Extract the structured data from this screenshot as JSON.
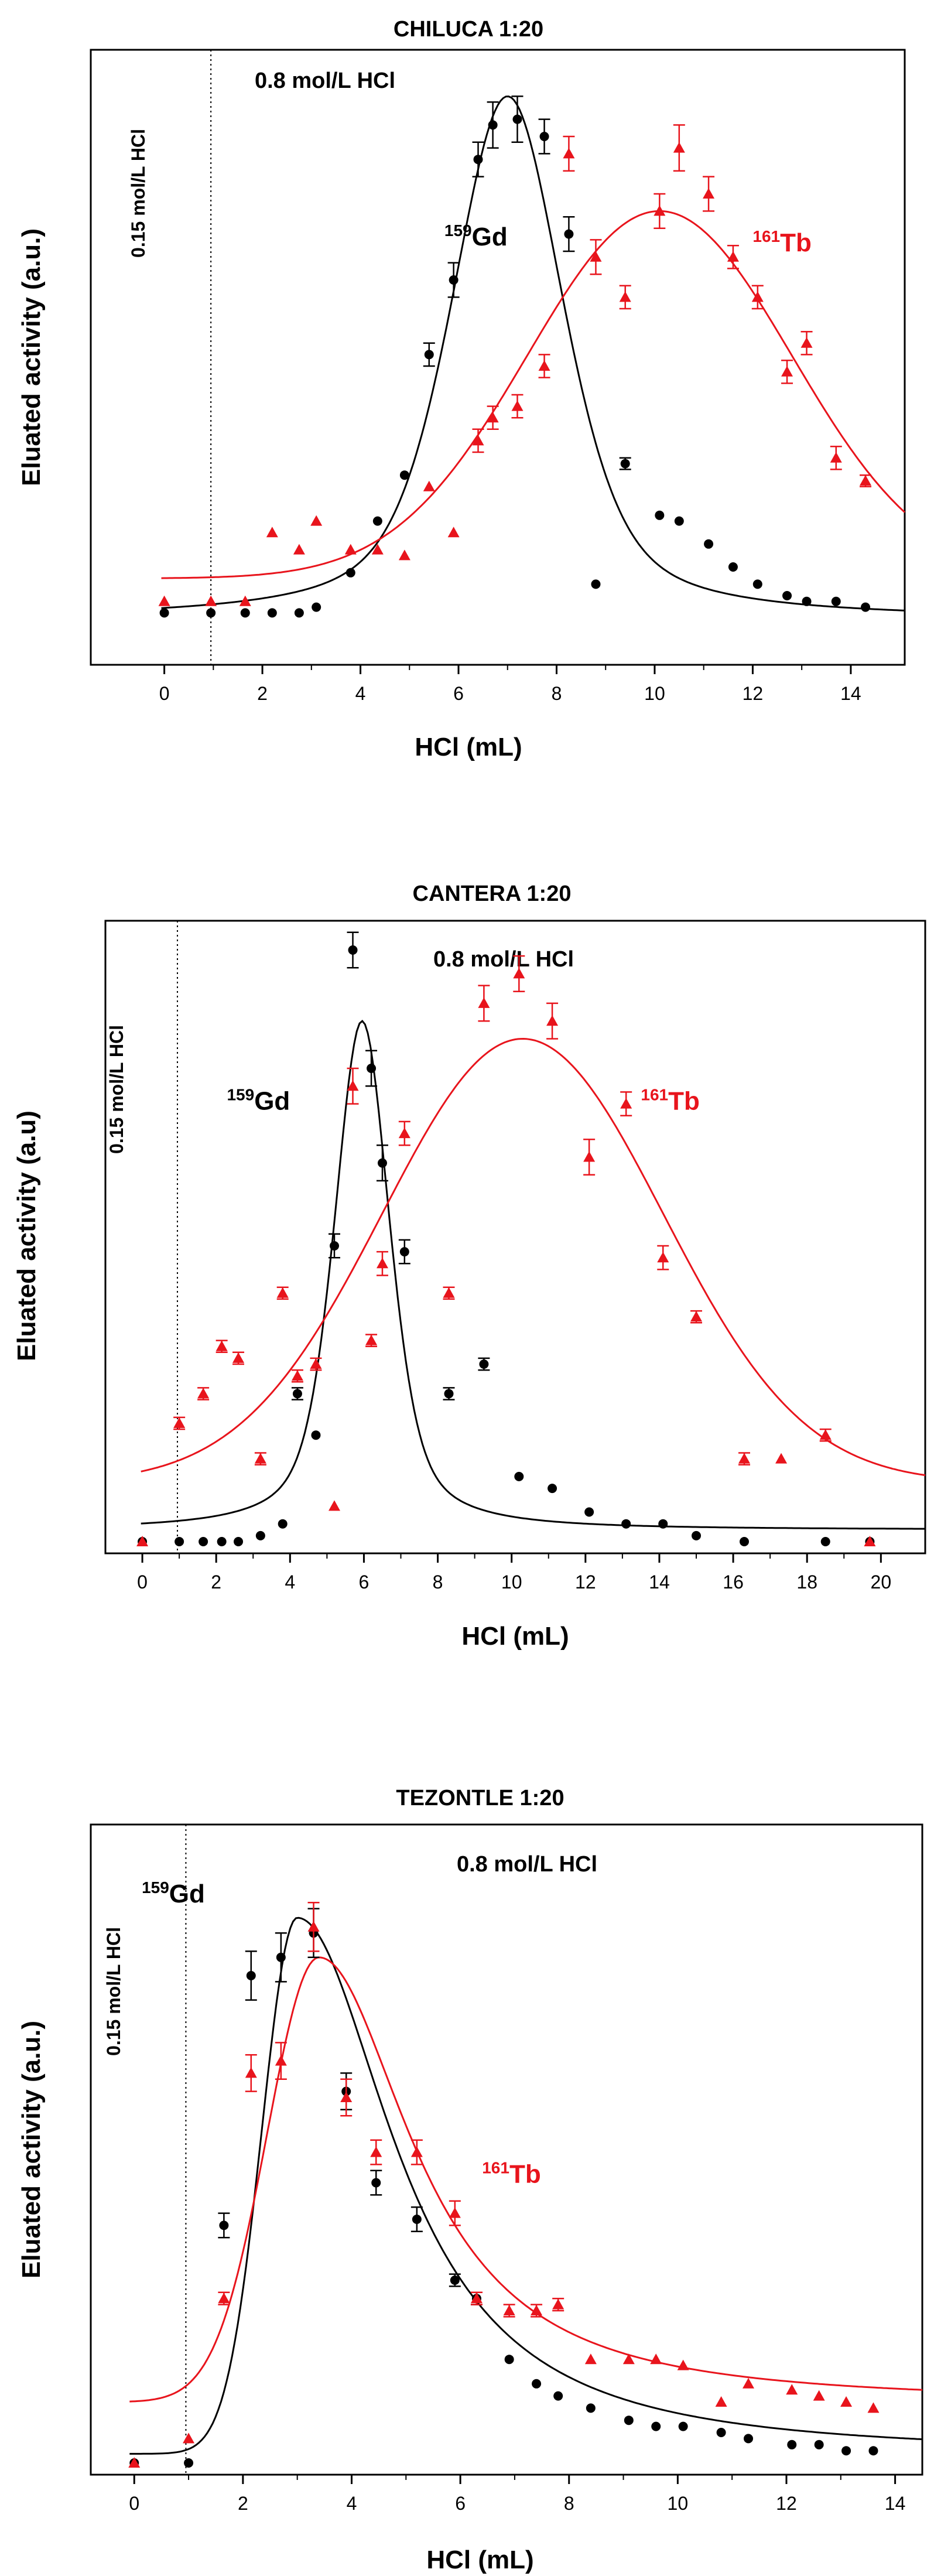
{
  "colors": {
    "gd": "#000000",
    "tb": "#e8141c"
  },
  "chart_data": [
    {
      "type": "scatter",
      "title": "CHILUCA 1:20",
      "xlabel": "HCl  (mL)",
      "ylabel": "Eluated activity (a.u.)",
      "xlim": [
        -1.5,
        15.1
      ],
      "ylim": [
        0,
        100
      ],
      "xticks": [
        0,
        2,
        4,
        6,
        8,
        10,
        12,
        14
      ],
      "xtick_labels": [
        "0",
        "2",
        "4",
        "6",
        "8",
        "10",
        "12",
        "14"
      ],
      "vline_x": 0.95,
      "upper_annotation": "0.8 mol/L HCl",
      "vertical_annotation": "0.15 mol/L HCl",
      "gd_label": {
        "sup": "159",
        "text": "Gd",
        "x": 7.0,
        "y": 71
      },
      "tb_label": {
        "sup": "161",
        "text": "Tb",
        "x": 12.0,
        "y": 70
      },
      "series": [
        {
          "name": "159Gd",
          "color": "#000000",
          "marker": "circle",
          "x": [
            0,
            0.95,
            1.65,
            2.2,
            2.75,
            3.1,
            3.8,
            4.35,
            4.9,
            5.4,
            5.9,
            6.4,
            6.7,
            7.2,
            7.75,
            8.25,
            8.8,
            9.4,
            10.1,
            10.5,
            11.1,
            11.6,
            12.1,
            12.7,
            13.1,
            13.7,
            14.3
          ],
          "y": [
            7,
            7,
            7,
            7,
            7,
            8,
            14,
            23,
            31,
            52,
            65,
            86,
            92,
            93,
            90,
            73,
            12,
            33,
            24,
            23,
            19,
            15,
            12,
            10,
            9,
            9,
            8
          ],
          "err": [
            0,
            0,
            0,
            0,
            0,
            0,
            0,
            0,
            0,
            2,
            3,
            3,
            4,
            4,
            3,
            3,
            0,
            1,
            0,
            0,
            0,
            0,
            0,
            0,
            0,
            0,
            0
          ]
        },
        {
          "name": "161Tb",
          "color": "#e8141c",
          "marker": "triangle",
          "x": [
            0,
            0.95,
            1.65,
            2.2,
            2.75,
            3.1,
            3.8,
            4.35,
            4.9,
            5.4,
            5.9,
            6.4,
            6.7,
            7.2,
            7.75,
            8.25,
            8.8,
            9.4,
            10.1,
            10.5,
            11.1,
            11.6,
            12.1,
            12.7,
            13.1,
            13.7,
            14.3
          ],
          "y": [
            9,
            9,
            9,
            21,
            18,
            23,
            18,
            18,
            17,
            29,
            21,
            37,
            41,
            43,
            50,
            87,
            69,
            62,
            77,
            88,
            80,
            69,
            62,
            49,
            54,
            34,
            30
          ],
          "err": [
            0,
            0,
            0,
            0,
            0,
            0,
            0,
            0,
            0,
            0,
            0,
            2,
            2,
            2,
            2,
            3,
            3,
            2,
            3,
            4,
            3,
            2,
            2,
            2,
            2,
            2,
            1
          ]
        }
      ],
      "fits": [
        {
          "name": "159Gd fit",
          "color": "#000000",
          "model": "lorentz_gauss",
          "x0": 7.0,
          "amp": 91,
          "base": 6,
          "w": 1.45
        },
        {
          "name": "161Tb fit",
          "color": "#e8141c",
          "model": "gauss",
          "x0": 10.1,
          "amp": 64,
          "base": 13,
          "w": 2.7
        }
      ]
    },
    {
      "type": "scatter",
      "title": "CANTERA 1:20",
      "xlabel": "HCl (mL)",
      "ylabel": "Eluated activity (a.u)",
      "xlim": [
        -1,
        21.2
      ],
      "ylim": [
        0,
        100
      ],
      "xticks": [
        0,
        2,
        4,
        6,
        8,
        10,
        12,
        14,
        16,
        18,
        20
      ],
      "xtick_labels": [
        "0",
        "2",
        "4",
        "6",
        "8",
        "10",
        "12",
        "14",
        "16",
        "18",
        "20"
      ],
      "vline_x": 0.95,
      "upper_annotation": "0.8 mol/L HCl",
      "vertical_annotation": "0.15 mol/L HCl",
      "gd_label": {
        "sup": "159",
        "text": "Gd",
        "x": 4.0,
        "y": 73
      },
      "tb_label": {
        "sup": "161",
        "text": "Tb",
        "x": 13.5,
        "y": 73
      },
      "series": [
        {
          "name": "159Gd",
          "color": "#000000",
          "marker": "circle",
          "x": [
            0,
            1.0,
            1.65,
            2.15,
            2.6,
            3.2,
            3.8,
            4.2,
            4.7,
            5.2,
            5.7,
            6.2,
            6.5,
            7.1,
            8.3,
            9.25,
            10.2,
            11.1,
            12.1,
            13.1,
            14.1,
            15.0,
            16.3,
            18.5,
            19.7
          ],
          "y": [
            0,
            0,
            0,
            0,
            0,
            1,
            3,
            25,
            18,
            50,
            100,
            80,
            64,
            49,
            25,
            30,
            11,
            9,
            5,
            3,
            3,
            1,
            0,
            0,
            0
          ],
          "err": [
            0,
            0,
            0,
            0,
            0,
            0,
            0,
            1,
            0,
            2,
            3,
            3,
            3,
            2,
            1,
            1,
            0,
            0,
            0,
            0,
            0,
            0,
            0,
            0,
            0
          ]
        },
        {
          "name": "161Tb",
          "color": "#e8141c",
          "marker": "triangle",
          "x": [
            0,
            1.0,
            1.65,
            2.15,
            2.6,
            3.2,
            3.8,
            4.2,
            4.7,
            5.2,
            5.7,
            6.2,
            6.5,
            7.1,
            8.3,
            9.25,
            10.2,
            11.1,
            12.1,
            13.1,
            14.1,
            15.0,
            16.3,
            17.3,
            18.5,
            19.7
          ],
          "y": [
            0,
            20,
            25,
            33,
            31,
            14,
            42,
            28,
            30,
            6,
            77,
            34,
            47,
            69,
            42,
            91,
            96,
            88,
            65,
            74,
            48,
            38,
            14,
            14,
            18,
            0
          ],
          "err": [
            0,
            1,
            1,
            1,
            1,
            1,
            1,
            1,
            1,
            0,
            3,
            1,
            2,
            2,
            1,
            3,
            3,
            3,
            3,
            2,
            2,
            1,
            1,
            0,
            1,
            0
          ]
        }
      ],
      "fits": [
        {
          "name": "159Gd fit",
          "color": "#000000",
          "model": "lorentz_gauss",
          "x0": 5.95,
          "amp": 86,
          "base": 2,
          "w": 0.95
        },
        {
          "name": "161Tb fit",
          "color": "#e8141c",
          "model": "gauss",
          "x0": 10.3,
          "amp": 75,
          "base": 10,
          "w": 3.8
        }
      ]
    },
    {
      "type": "scatter",
      "title": "TEZONTLE 1:20",
      "xlabel": "HCl (mL)",
      "ylabel": "Eluated activity (a.u.)",
      "xlim": [
        -0.8,
        14.5
      ],
      "ylim": [
        0,
        100
      ],
      "xticks": [
        0,
        2,
        4,
        6,
        8,
        10,
        12,
        14
      ],
      "xtick_labels": [
        "0",
        "2",
        "4",
        "6",
        "8",
        "10",
        "12",
        "14"
      ],
      "vline_x": 0.95,
      "upper_annotation": "0.8 mol/L HCl",
      "vertical_annotation": "0.15 mol/L HCl",
      "gd_label": {
        "sup": "159",
        "text": "Gd",
        "x": 1.3,
        "y": 92
      },
      "tb_label": {
        "sup": "161",
        "text": "Tb",
        "x": 6.4,
        "y": 46
      },
      "series": [
        {
          "name": "159Gd",
          "color": "#000000",
          "marker": "circle",
          "x": [
            0,
            1.0,
            1.65,
            2.15,
            2.7,
            3.3,
            3.9,
            4.45,
            5.2,
            5.9,
            6.3,
            6.9,
            7.4,
            7.8,
            8.4,
            9.1,
            9.6,
            10.1,
            10.8,
            11.3,
            12.1,
            12.6,
            13.1,
            13.6
          ],
          "y": [
            0,
            0,
            39,
            80,
            83,
            87,
            61,
            46,
            40,
            30,
            27,
            17,
            13,
            11,
            9,
            7,
            6,
            6,
            5,
            4,
            3,
            3,
            2,
            2
          ],
          "err": [
            0,
            0,
            2,
            4,
            4,
            4,
            3,
            2,
            2,
            1,
            1,
            0,
            0,
            0,
            0,
            0,
            0,
            0,
            0,
            0,
            0,
            0,
            0,
            0
          ]
        },
        {
          "name": "161Tb",
          "color": "#e8141c",
          "marker": "triangle",
          "x": [
            0,
            1.0,
            1.65,
            2.15,
            2.7,
            3.3,
            3.9,
            4.45,
            5.2,
            5.9,
            6.3,
            6.9,
            7.4,
            7.8,
            8.4,
            9.1,
            9.6,
            10.1,
            10.8,
            11.3,
            12.1,
            12.6,
            13.1,
            13.6
          ],
          "y": [
            0,
            4,
            27,
            64,
            66,
            88,
            60,
            51,
            51,
            41,
            27,
            25,
            25,
            26,
            17,
            17,
            17,
            16,
            10,
            13,
            12,
            11,
            10,
            9
          ],
          "err": [
            0,
            0,
            1,
            3,
            3,
            4,
            3,
            2,
            2,
            2,
            1,
            1,
            1,
            1,
            0,
            0,
            0,
            0,
            0,
            0,
            0,
            0,
            0,
            0
          ]
        }
      ],
      "fits": [
        {
          "name": "159Gd fit",
          "color": "#000000",
          "model": "asym",
          "x0": 3.0,
          "amp": 88,
          "base": 1.5,
          "wl": 0.65,
          "wr": 1.6
        },
        {
          "name": "161Tb fit",
          "color": "#e8141c",
          "model": "asym",
          "x0": 3.4,
          "amp": 73,
          "base": 10,
          "wl": 0.95,
          "wr": 1.55
        }
      ]
    }
  ]
}
